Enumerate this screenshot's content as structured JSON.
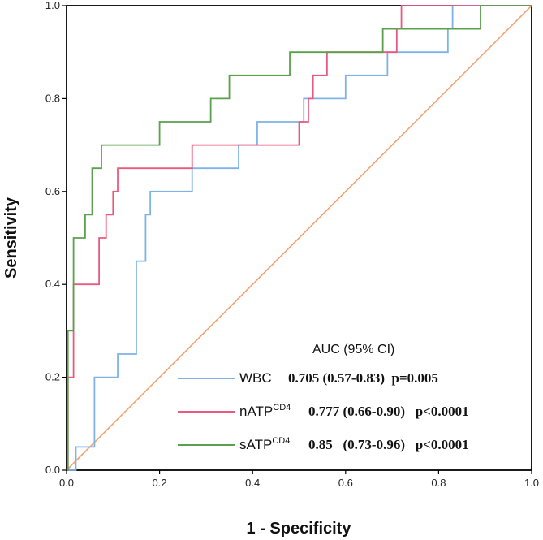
{
  "chart_data": {
    "type": "line",
    "title": "",
    "xlabel": "1 - Specificity",
    "ylabel": "Sensitivity",
    "xlim": [
      0,
      1
    ],
    "ylim": [
      0,
      1
    ],
    "x_ticks": [
      "0.0",
      "0.2",
      "0.4",
      "0.6",
      "0.8",
      "1.0"
    ],
    "y_ticks": [
      "0.0",
      "0.2",
      "0.4",
      "0.6",
      "0.8",
      "1.0"
    ],
    "grid": false,
    "legend": {
      "title": "AUC (95% CI)",
      "placement": "bottom-right",
      "entries": [
        {
          "base": "WBC",
          "sup": "",
          "stat": "0.705 (0.57-0.83)  p=0.005"
        },
        {
          "base": "nATP",
          "sup": "CD4",
          "stat": "0.777 (0.66-0.90)   p<0.0001"
        },
        {
          "base": "sATP",
          "sup": "CD4",
          "stat": "0.85   (0.73-0.96)   p<0.0001"
        }
      ]
    },
    "reference_line": {
      "name": "reference",
      "color": "#f4a06f",
      "x": [
        0,
        1
      ],
      "y": [
        0,
        1
      ]
    },
    "series": [
      {
        "name": "WBC",
        "color": "#7fb3e8",
        "x": [
          0,
          0.02,
          0.02,
          0.06,
          0.06,
          0.11,
          0.11,
          0.15,
          0.15,
          0.17,
          0.17,
          0.18,
          0.18,
          0.27,
          0.27,
          0.37,
          0.37,
          0.41,
          0.41,
          0.51,
          0.51,
          0.55,
          0.55,
          0.6,
          0.6,
          0.69,
          0.69,
          0.82,
          0.82,
          0.83,
          0.83,
          1.0
        ],
        "y": [
          0,
          0,
          0.05,
          0.05,
          0.2,
          0.2,
          0.25,
          0.25,
          0.45,
          0.45,
          0.55,
          0.55,
          0.6,
          0.6,
          0.65,
          0.65,
          0.7,
          0.7,
          0.75,
          0.75,
          0.8,
          0.8,
          0.8,
          0.8,
          0.85,
          0.85,
          0.9,
          0.9,
          0.95,
          0.95,
          1.0,
          1.0
        ]
      },
      {
        "name": "nATP CD4",
        "color": "#e95a7e",
        "x": [
          0,
          0.003,
          0.003,
          0.015,
          0.015,
          0.07,
          0.07,
          0.085,
          0.085,
          0.1,
          0.1,
          0.11,
          0.11,
          0.13,
          0.13,
          0.27,
          0.27,
          0.5,
          0.5,
          0.52,
          0.52,
          0.53,
          0.53,
          0.56,
          0.56,
          0.58,
          0.58,
          0.71,
          0.71,
          0.72,
          0.72,
          1.0
        ],
        "y": [
          0,
          0,
          0.2,
          0.2,
          0.4,
          0.4,
          0.5,
          0.5,
          0.55,
          0.55,
          0.6,
          0.6,
          0.65,
          0.65,
          0.65,
          0.65,
          0.7,
          0.7,
          0.75,
          0.75,
          0.8,
          0.8,
          0.85,
          0.85,
          0.9,
          0.9,
          0.9,
          0.9,
          0.95,
          0.95,
          1.0,
          1.0
        ]
      },
      {
        "name": "sATP CD4",
        "color": "#5aa04d",
        "x": [
          0,
          0.003,
          0.003,
          0.015,
          0.015,
          0.04,
          0.04,
          0.055,
          0.055,
          0.075,
          0.075,
          0.2,
          0.2,
          0.31,
          0.31,
          0.35,
          0.35,
          0.48,
          0.48,
          0.68,
          0.68,
          0.87,
          0.87,
          0.89,
          0.89,
          1.0
        ],
        "y": [
          0,
          0,
          0.3,
          0.3,
          0.5,
          0.5,
          0.55,
          0.55,
          0.65,
          0.65,
          0.7,
          0.7,
          0.75,
          0.75,
          0.8,
          0.8,
          0.85,
          0.85,
          0.9,
          0.9,
          0.95,
          0.95,
          0.95,
          0.95,
          1.0,
          1.0
        ]
      }
    ]
  }
}
